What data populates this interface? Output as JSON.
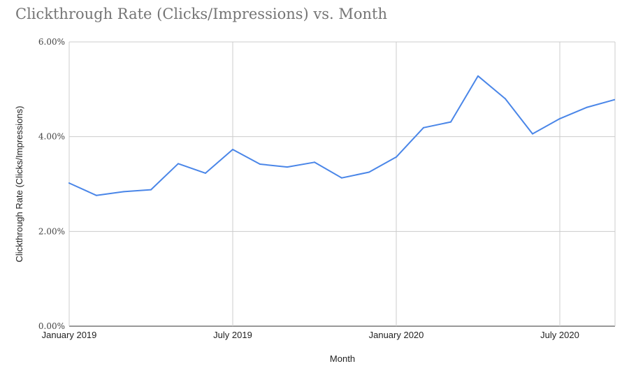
{
  "chart_data": {
    "type": "line",
    "title": "Clickthrough Rate (Clicks/Impressions) vs. Month",
    "xlabel": "Month",
    "ylabel": "Clickthrough Rate (Clicks/Impressions)",
    "ylim": [
      0,
      6
    ],
    "yticks": [
      0,
      2,
      4,
      6
    ],
    "ytick_labels": [
      "0.00%",
      "2.00%",
      "4.00%",
      "6.00%"
    ],
    "xtick_labels": [
      "January 2019",
      "July 2019",
      "January 2020",
      "July 2020"
    ],
    "xtick_months": [
      "2019-01",
      "2019-07",
      "2020-01",
      "2020-07"
    ],
    "grid": true,
    "line_color": "#4a86e8",
    "x": [
      "2019-01",
      "2019-02",
      "2019-03",
      "2019-04",
      "2019-05",
      "2019-06",
      "2019-07",
      "2019-08",
      "2019-09",
      "2019-10",
      "2019-11",
      "2019-12",
      "2020-01",
      "2020-02",
      "2020-03",
      "2020-04",
      "2020-05",
      "2020-06",
      "2020-07",
      "2020-08",
      "2020-09"
    ],
    "series": [
      {
        "values": [
          3.02,
          2.76,
          2.84,
          2.88,
          3.43,
          3.23,
          3.73,
          3.42,
          3.36,
          3.46,
          3.13,
          3.25,
          3.57,
          4.19,
          4.31,
          5.28,
          4.8,
          4.06,
          4.38,
          4.62,
          4.78
        ]
      }
    ]
  }
}
